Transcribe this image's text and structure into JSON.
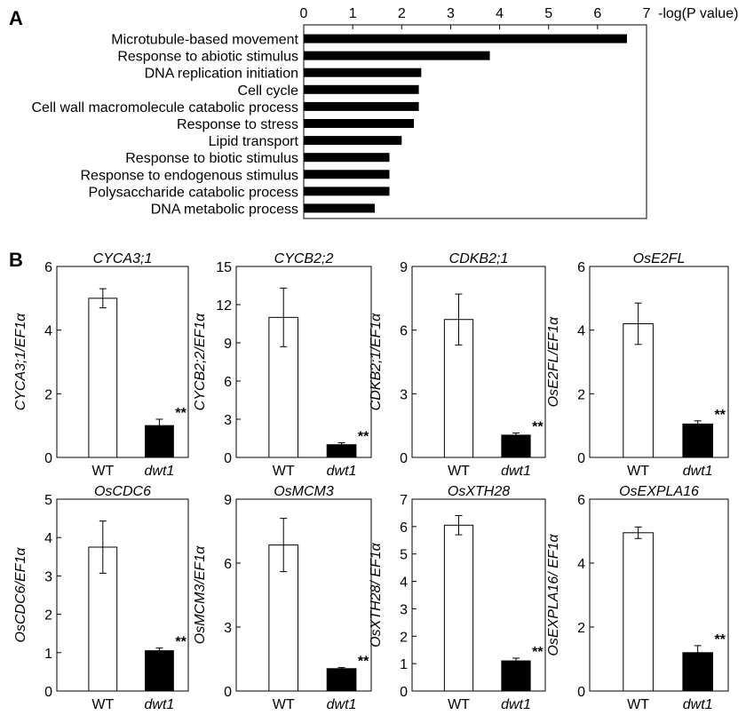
{
  "panels": {
    "a_letter": "A",
    "b_letter": "B"
  },
  "chart_data": [
    {
      "type": "bar",
      "orientation": "horizontal",
      "xlabel": "-log(P value)",
      "xlim": [
        0,
        7
      ],
      "xticks": [
        0,
        1,
        2,
        3,
        4,
        5,
        6,
        7
      ],
      "grid": false,
      "categories": [
        "Microtubule-based movement",
        "Response to abiotic stimulus",
        "DNA replication initiation",
        "Cell cycle",
        "Cell wall macromolecule catabolic process",
        "Response to stress",
        "Lipid transport",
        "Response to biotic stimulus",
        "Response to endogenous stimulus",
        "Polysaccharide catabolic process",
        "DNA metabolic process"
      ],
      "values": [
        6.6,
        3.8,
        2.4,
        2.35,
        2.35,
        2.25,
        2.0,
        1.75,
        1.75,
        1.75,
        1.45
      ],
      "bar_color": "#000000"
    },
    {
      "type": "bar",
      "title": "CYCA3;1",
      "ylabel": "CYCA3;1/EF1α",
      "categories": [
        "WT",
        "dwt1"
      ],
      "values": [
        5.0,
        1.0
      ],
      "errors": [
        0.3,
        0.2
      ],
      "ylim": [
        0,
        6
      ],
      "yticks": [
        0,
        2,
        4,
        6
      ],
      "significance": [
        null,
        "**"
      ],
      "bar_fills": [
        "#ffffff",
        "#000000"
      ]
    },
    {
      "type": "bar",
      "title": "CYCB2;2",
      "ylabel": "CYCB2;2/EF1α",
      "categories": [
        "WT",
        "dwt1"
      ],
      "values": [
        11.0,
        1.0
      ],
      "errors": [
        2.3,
        0.15
      ],
      "ylim": [
        0,
        15
      ],
      "yticks": [
        0,
        3,
        6,
        9,
        12,
        15
      ],
      "significance": [
        null,
        "**"
      ],
      "bar_fills": [
        "#ffffff",
        "#000000"
      ]
    },
    {
      "type": "bar",
      "title": "CDKB2;1",
      "ylabel": "CDKB2;1/EF1α",
      "categories": [
        "WT",
        "dwt1"
      ],
      "values": [
        6.5,
        1.05
      ],
      "errors": [
        1.2,
        0.1
      ],
      "ylim": [
        0,
        9
      ],
      "yticks": [
        0,
        3,
        6,
        9
      ],
      "significance": [
        null,
        "**"
      ],
      "bar_fills": [
        "#ffffff",
        "#000000"
      ]
    },
    {
      "type": "bar",
      "title": "OsE2FL",
      "ylabel": "OsE2FL/EF1α",
      "categories": [
        "WT",
        "dwt1"
      ],
      "values": [
        4.2,
        1.05
      ],
      "errors": [
        0.65,
        0.1
      ],
      "ylim": [
        0,
        6
      ],
      "yticks": [
        0,
        2,
        4,
        6
      ],
      "significance": [
        null,
        "**"
      ],
      "bar_fills": [
        "#ffffff",
        "#000000"
      ]
    },
    {
      "type": "bar",
      "title": "OsCDC6",
      "ylabel": "OsCDC6/EF1α",
      "categories": [
        "WT",
        "dwt1"
      ],
      "values": [
        3.75,
        1.05
      ],
      "errors": [
        0.68,
        0.07
      ],
      "ylim": [
        0,
        5
      ],
      "yticks": [
        0,
        1,
        2,
        3,
        4,
        5
      ],
      "significance": [
        null,
        "**"
      ],
      "bar_fills": [
        "#ffffff",
        "#000000"
      ]
    },
    {
      "type": "bar",
      "title": "OsMCM3",
      "ylabel": "OsMCM3/EF1α",
      "categories": [
        "WT",
        "dwt1"
      ],
      "values": [
        6.85,
        1.05
      ],
      "errors": [
        1.25,
        0.05
      ],
      "ylim": [
        0,
        9
      ],
      "yticks": [
        0,
        3,
        6,
        9
      ],
      "significance": [
        null,
        "**"
      ],
      "bar_fills": [
        "#ffffff",
        "#000000"
      ]
    },
    {
      "type": "bar",
      "title": "OsXTH28",
      "ylabel": "OsXTH28/ EF1α",
      "categories": [
        "WT",
        "dwt1"
      ],
      "values": [
        6.05,
        1.1
      ],
      "errors": [
        0.35,
        0.1
      ],
      "ylim": [
        0,
        7
      ],
      "yticks": [
        0,
        1,
        2,
        3,
        4,
        5,
        6,
        7
      ],
      "significance": [
        null,
        "**"
      ],
      "bar_fills": [
        "#ffffff",
        "#000000"
      ]
    },
    {
      "type": "bar",
      "title": "OsEXPLA16",
      "ylabel": "OsEXPLA16/ EF1α",
      "categories": [
        "WT",
        "dwt1"
      ],
      "values": [
        4.95,
        1.2
      ],
      "errors": [
        0.18,
        0.22
      ],
      "ylim": [
        0,
        6
      ],
      "yticks": [
        0,
        2,
        4,
        6
      ],
      "significance": [
        null,
        "**"
      ],
      "bar_fills": [
        "#ffffff",
        "#000000"
      ]
    }
  ]
}
